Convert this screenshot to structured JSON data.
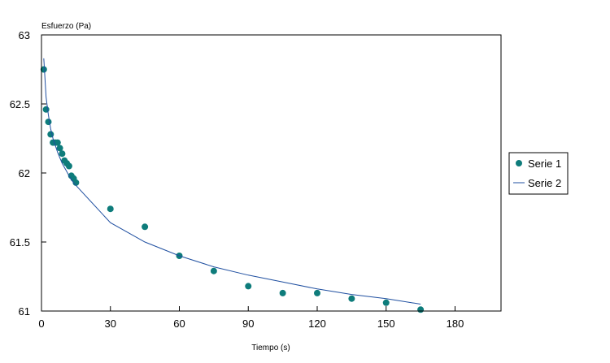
{
  "chart_data": {
    "type": "scatter",
    "ylabel": "Esfuerzo (Pa)",
    "xlabel": "Tiempo (s)",
    "xlim": [
      0,
      200
    ],
    "ylim": [
      61,
      63
    ],
    "x_ticks": [
      0,
      30,
      60,
      90,
      120,
      150,
      180
    ],
    "y_ticks": [
      61,
      61.5,
      62,
      62.5,
      63
    ],
    "y_tick_labels": [
      "61",
      "61.5",
      "62",
      "62.5",
      "63"
    ],
    "grid": false,
    "legend_position": "right",
    "series": [
      {
        "name": "Serie 1",
        "kind": "scatter",
        "color": "#0e7c7b",
        "points": [
          [
            1,
            62.75
          ],
          [
            2,
            62.46
          ],
          [
            3,
            62.37
          ],
          [
            4,
            62.28
          ],
          [
            5,
            62.22
          ],
          [
            6,
            62.22
          ],
          [
            7,
            62.22
          ],
          [
            8,
            62.18
          ],
          [
            9,
            62.14
          ],
          [
            10,
            62.09
          ],
          [
            11,
            62.07
          ],
          [
            12,
            62.05
          ],
          [
            13,
            61.98
          ],
          [
            14,
            61.96
          ],
          [
            15,
            61.93
          ],
          [
            30,
            61.74
          ],
          [
            45,
            61.61
          ],
          [
            60,
            61.4
          ],
          [
            75,
            61.29
          ],
          [
            90,
            61.18
          ],
          [
            105,
            61.13
          ],
          [
            120,
            61.13
          ],
          [
            135,
            61.09
          ],
          [
            150,
            61.06
          ],
          [
            165,
            61.01
          ]
        ]
      },
      {
        "name": "Serie 2",
        "kind": "line",
        "color": "#1f4fa0",
        "points": [
          [
            1,
            62.83
          ],
          [
            2,
            62.55
          ],
          [
            3,
            62.42
          ],
          [
            4,
            62.32
          ],
          [
            5,
            62.25
          ],
          [
            6,
            62.2
          ],
          [
            7,
            62.15
          ],
          [
            8,
            62.11
          ],
          [
            9,
            62.07
          ],
          [
            10,
            62.04
          ],
          [
            11,
            62.01
          ],
          [
            12,
            61.98
          ],
          [
            13,
            61.95
          ],
          [
            14,
            61.93
          ],
          [
            15,
            61.91
          ],
          [
            30,
            61.64
          ],
          [
            45,
            61.5
          ],
          [
            60,
            61.4
          ],
          [
            75,
            61.32
          ],
          [
            90,
            61.26
          ],
          [
            105,
            61.21
          ],
          [
            120,
            61.16
          ],
          [
            135,
            61.12
          ],
          [
            150,
            61.09
          ],
          [
            165,
            61.05
          ]
        ]
      }
    ]
  }
}
